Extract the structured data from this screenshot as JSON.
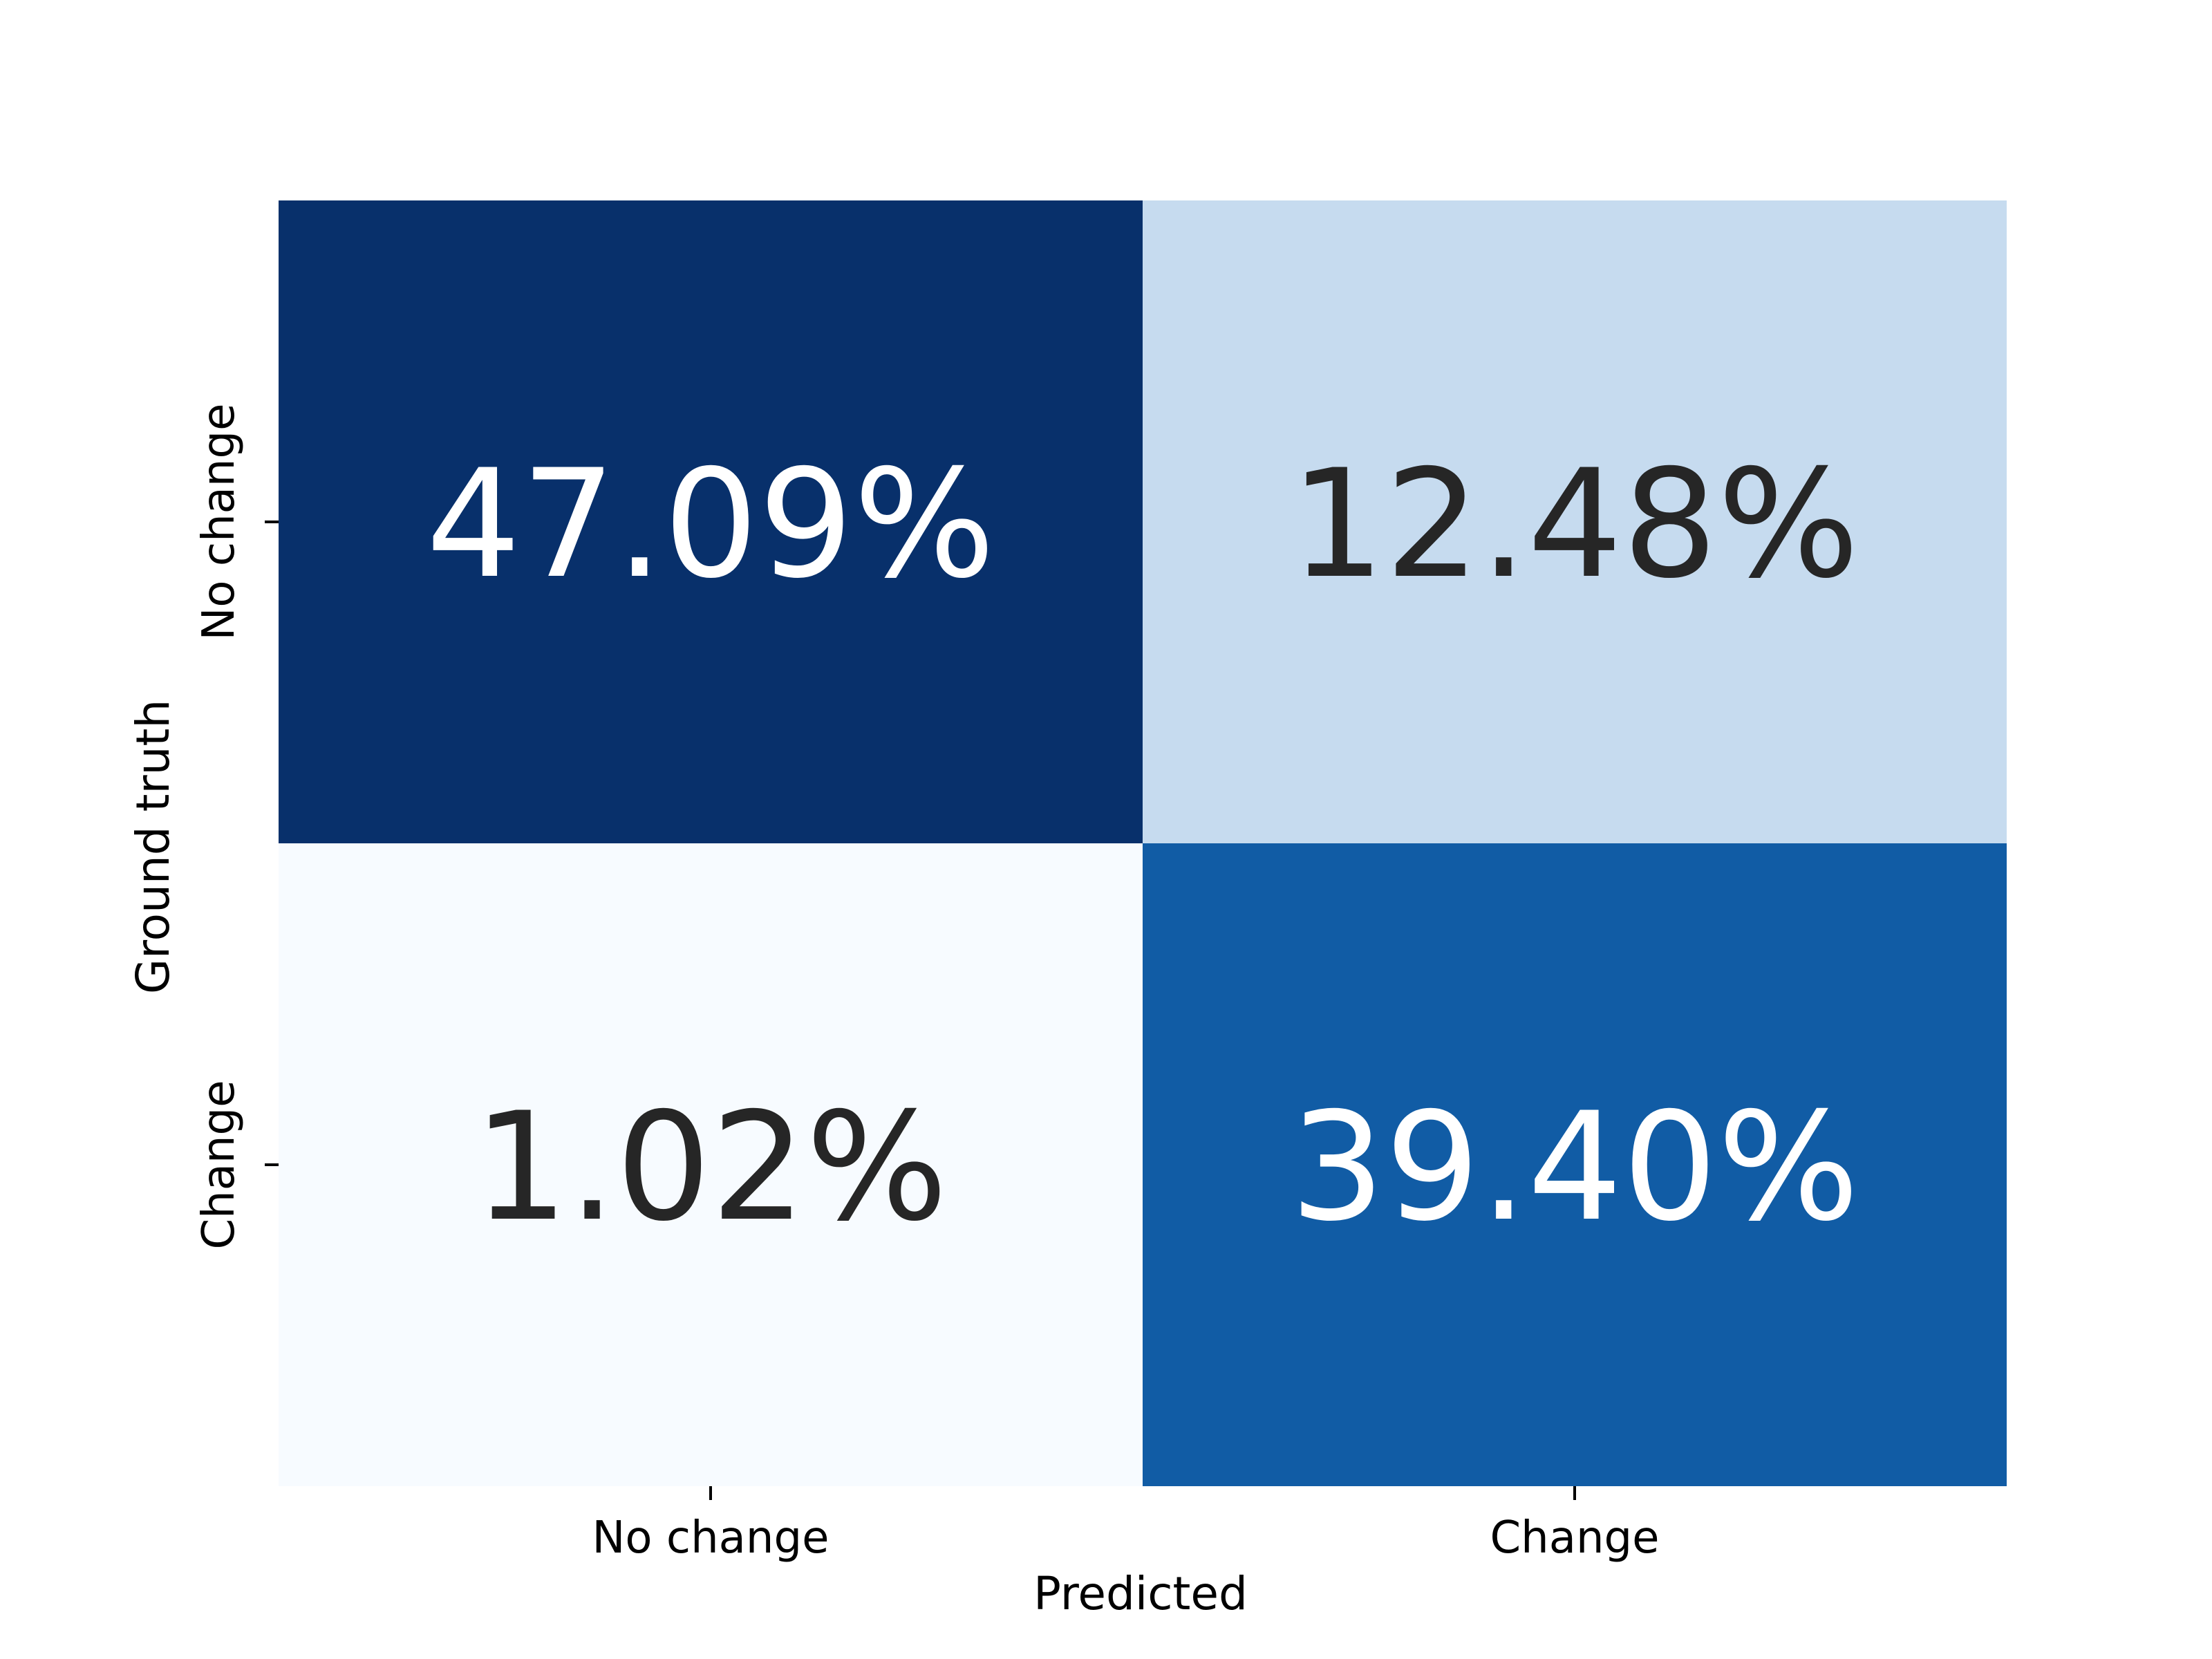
{
  "chart_data": {
    "type": "heatmap",
    "title": "",
    "xlabel": "Predicted",
    "ylabel": "Ground truth",
    "x_categories": [
      "No change",
      "Change"
    ],
    "y_categories": [
      "No change",
      "Change"
    ],
    "values": [
      [
        47.09,
        12.48
      ],
      [
        1.02,
        39.4
      ]
    ],
    "cell_labels": [
      [
        "47.09%",
        "12.48%"
      ],
      [
        "1.02%",
        "39.40%"
      ]
    ],
    "colormap": "Blues",
    "colors": [
      [
        "#08306b",
        "#c6dbef"
      ],
      [
        "#f7fbff",
        "#115ca5"
      ]
    ],
    "text_colors": [
      [
        "#ffffff",
        "#262626"
      ],
      [
        "#262626",
        "#ffffff"
      ]
    ],
    "colorbar": false,
    "grid": false
  }
}
